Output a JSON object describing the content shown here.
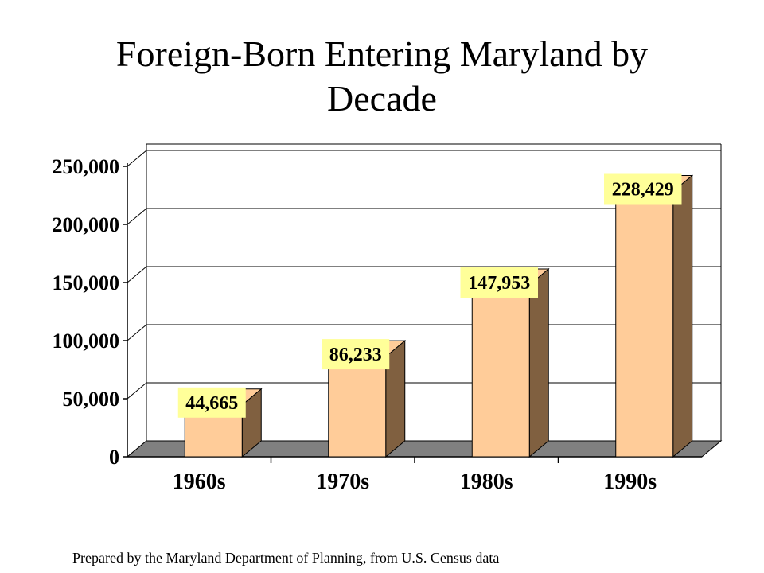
{
  "slide": {
    "title_line1": "Foreign-Born Entering Maryland by",
    "title_line2": "Decade",
    "footer": "Prepared by the Maryland Department of Planning, from U.S. Census data"
  },
  "colors": {
    "bar_front": "#FFCC99",
    "bar_side": "#806040",
    "floor": "#808080",
    "label_bg": "#FFFF99",
    "grid": "#000000"
  },
  "chart_data": {
    "type": "bar",
    "title": "Foreign-Born Entering Maryland by Decade",
    "categories": [
      "1960s",
      "1970s",
      "1980s",
      "1990s"
    ],
    "values": [
      44665,
      86233,
      147953,
      228429
    ],
    "value_labels": [
      "44,665",
      "86,233",
      "147,953",
      "228,429"
    ],
    "ylim": [
      0,
      250000
    ],
    "yticks": [
      0,
      50000,
      100000,
      150000,
      200000,
      250000
    ],
    "ytick_labels": [
      "0",
      "50,000",
      "100,000",
      "150,000",
      "200,000",
      "250,000"
    ],
    "grid": true,
    "style": "3d-column",
    "xlabel": "",
    "ylabel": ""
  }
}
